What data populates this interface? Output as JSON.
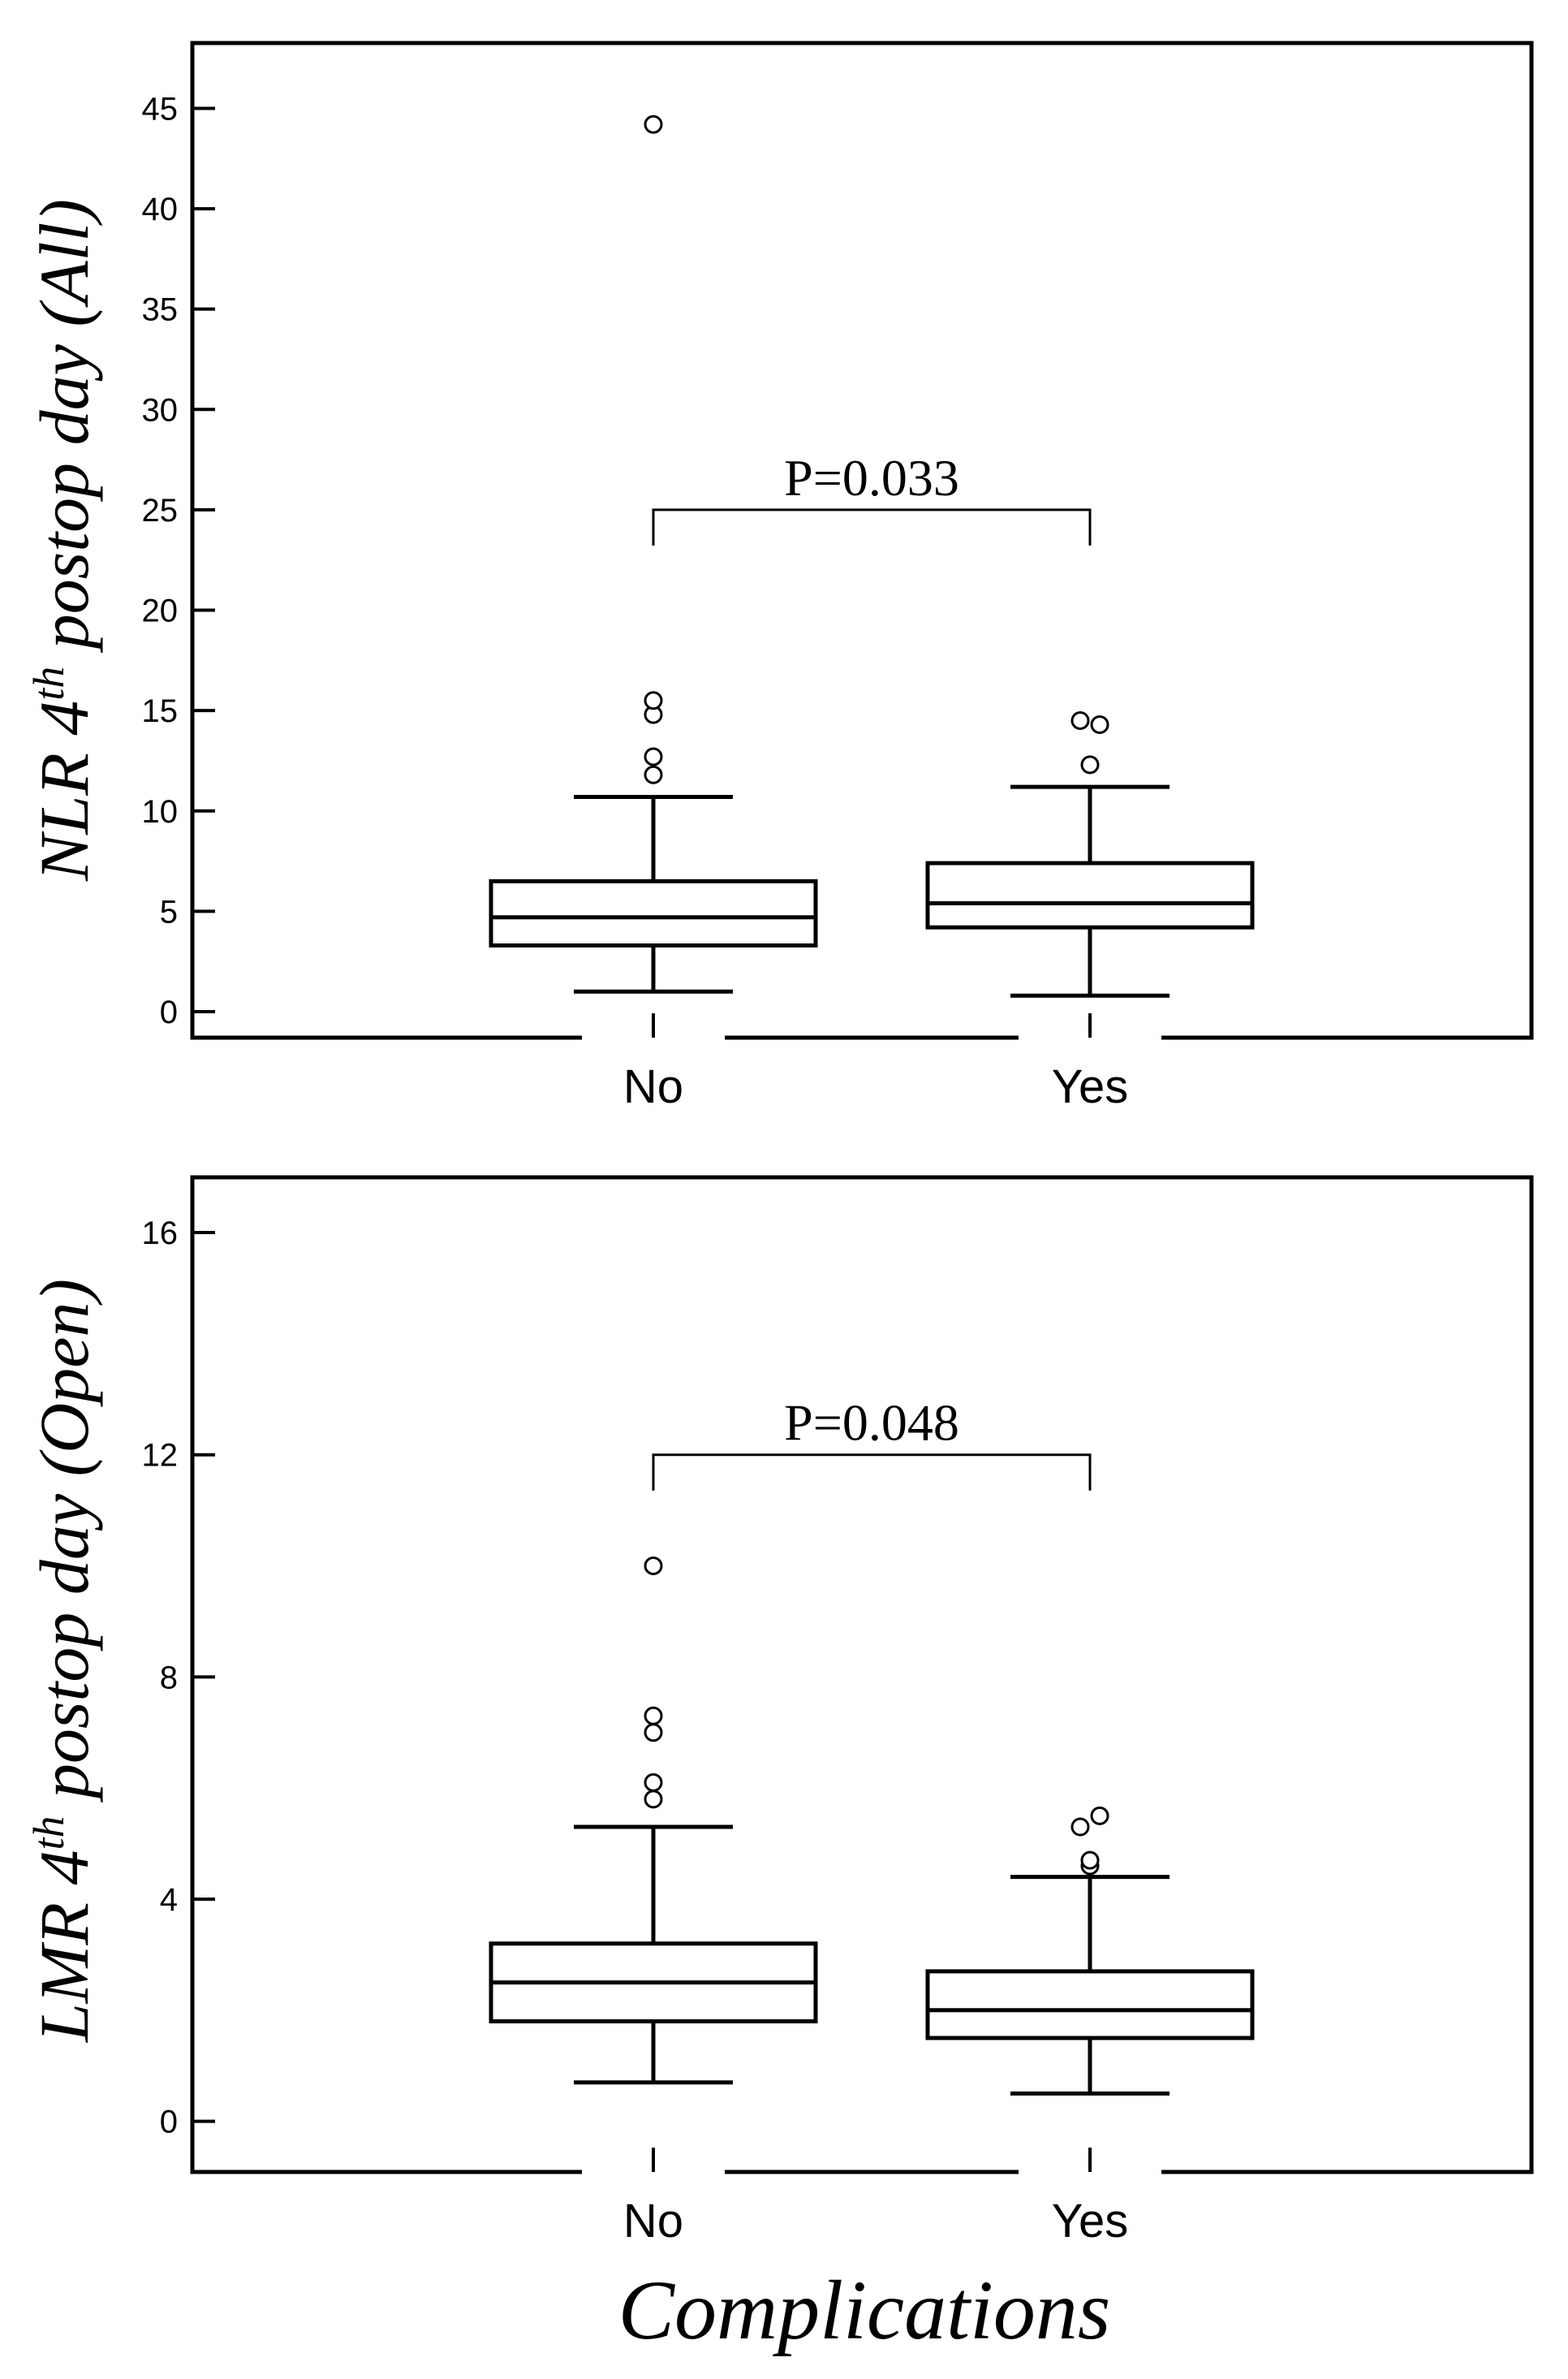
{
  "figure": {
    "x_axis_title": "Complications"
  },
  "chart_data": [
    {
      "type": "box",
      "ylabel_main": "NLR 4",
      "ylabel_sup": "th",
      "ylabel_rest": " postop day (All)",
      "xlabel": "",
      "categories": [
        "No",
        "Yes"
      ],
      "ylim": [
        0,
        47
      ],
      "yticks": [
        0,
        5,
        10,
        15,
        20,
        25,
        30,
        35,
        40,
        45
      ],
      "grid": false,
      "boxes": [
        {
          "category": "No",
          "whisker_low": 1.0,
          "q1": 3.3,
          "median": 4.7,
          "q3": 6.5,
          "whisker_high": 10.7,
          "outliers": [
            11.8,
            12.7,
            14.8,
            15.5,
            44.2
          ]
        },
        {
          "category": "Yes",
          "whisker_low": 0.8,
          "q1": 4.2,
          "median": 5.4,
          "q3": 7.4,
          "whisker_high": 11.2,
          "outliers": [
            12.3,
            14.3,
            14.5
          ]
        }
      ],
      "annotation": {
        "text": "P=0.033",
        "between": [
          "No",
          "Yes"
        ],
        "y": 25.0
      }
    },
    {
      "type": "box",
      "ylabel_main": "LMR 4",
      "ylabel_sup": "th",
      "ylabel_rest": " postop day (Open)",
      "xlabel": "",
      "categories": [
        "No",
        "Yes"
      ],
      "ylim": [
        -0.4,
        16.6
      ],
      "yticks": [
        0,
        4,
        8,
        12,
        16
      ],
      "grid": false,
      "boxes": [
        {
          "category": "No",
          "whisker_low": 0.7,
          "q1": 1.8,
          "median": 2.5,
          "q3": 3.2,
          "whisker_high": 5.3,
          "outliers": [
            5.8,
            6.1,
            7.0,
            7.3,
            10.0
          ]
        },
        {
          "category": "Yes",
          "whisker_low": 0.5,
          "q1": 1.5,
          "median": 2.0,
          "q3": 2.7,
          "whisker_high": 4.4,
          "outliers": [
            4.6,
            4.7,
            5.3,
            5.5
          ]
        }
      ],
      "annotation": {
        "text": "P=0.048",
        "between": [
          "No",
          "Yes"
        ],
        "y": 12.0
      }
    }
  ]
}
